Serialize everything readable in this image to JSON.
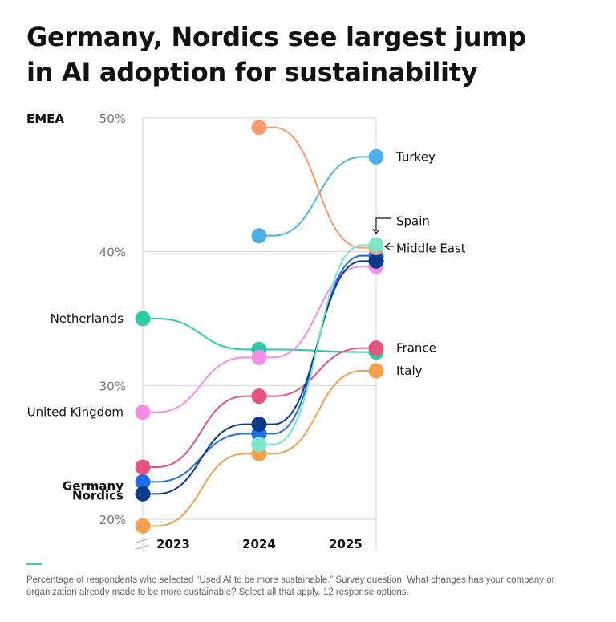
{
  "title_lines": [
    "Germany, Nordics see largest jump",
    "in AI adoption for sustainability"
  ],
  "footnote": "Percentage of respondents who selected “Used AI to be more sustainable.” Survey question: What changes has your company or organization already made to be more sustainable? Select all that apply. 12 response options.",
  "colors": {
    "accent_rule": "#2fd6b0",
    "grid": "#d4d4d4",
    "axis_text": "#777777"
  },
  "chart_data": {
    "type": "line",
    "region_label": "EMEA",
    "x": [
      "2023",
      "2024",
      "2025"
    ],
    "ylim": [
      17,
      50
    ],
    "yticks": [
      20,
      30,
      40,
      50
    ],
    "ytick_labels": [
      "20%",
      "30%",
      "40%",
      "50%"
    ],
    "grid": true,
    "series": [
      {
        "name": "Netherlands",
        "values": [
          35,
          32.7,
          32.5
        ],
        "color": "#2ecba6",
        "label_side": "left",
        "bold": false
      },
      {
        "name": "United Kingdom",
        "values": [
          28,
          32.1,
          38.9
        ],
        "color": "#f48ee8",
        "label_side": "left",
        "bold": false
      },
      {
        "name": "France",
        "values": [
          23.9,
          29.2,
          32.8
        ],
        "color": "#e3557f",
        "label_side": "right",
        "bold": false
      },
      {
        "name": "Germany",
        "values": [
          22.8,
          26.4,
          39.7
        ],
        "color": "#1f6fe8",
        "label_side": "left",
        "bold": true
      },
      {
        "name": "Nordics",
        "values": [
          21.9,
          27.1,
          39.3
        ],
        "color": "#0b3a8c",
        "label_side": "left",
        "bold": true
      },
      {
        "name": "Italy",
        "values": [
          19.5,
          24.9,
          31.1
        ],
        "color": "#f4a04e",
        "label_side": "right",
        "bold": false
      },
      {
        "name": "Turkey",
        "values": [
          null,
          41.2,
          47.1
        ],
        "color": "#4db1e8",
        "label_side": "right",
        "bold": false
      },
      {
        "name": "Middle East",
        "values": [
          null,
          49.3,
          40.3
        ],
        "color": "#fb9a6e",
        "label_side": "right",
        "bold": false
      },
      {
        "name": "Spain",
        "values": [
          null,
          25.6,
          40.5
        ],
        "color": "#7ee6c8",
        "label_side": "right",
        "bold": false
      }
    ]
  }
}
